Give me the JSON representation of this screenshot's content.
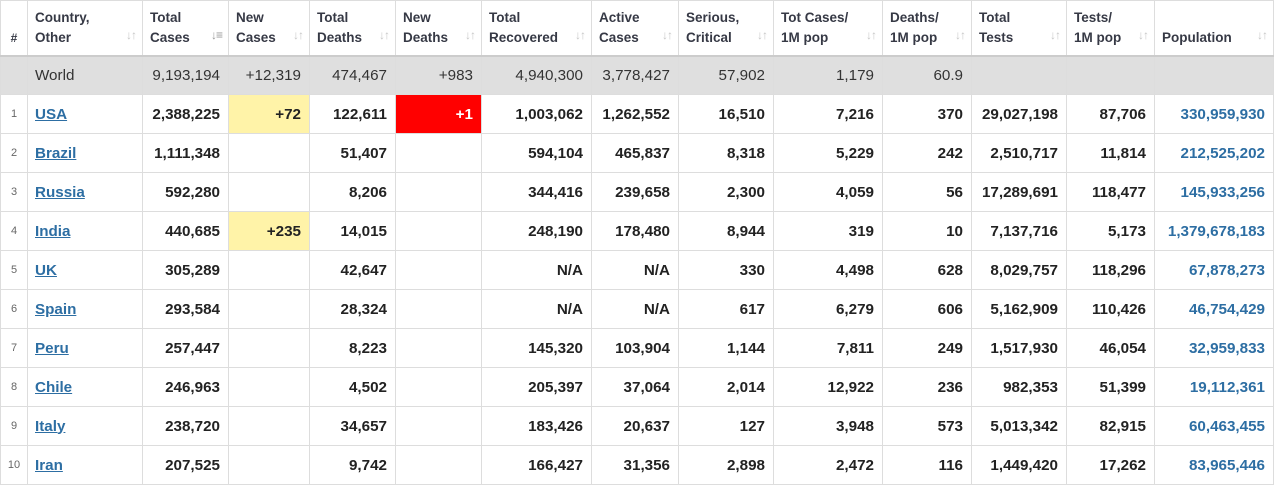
{
  "headers": {
    "hash": "#",
    "country": [
      "Country,",
      "Other"
    ],
    "total_cases": [
      "Total",
      "Cases"
    ],
    "new_cases": [
      "New",
      "Cases"
    ],
    "total_deaths": [
      "Total",
      "Deaths"
    ],
    "new_deaths": [
      "New",
      "Deaths"
    ],
    "total_recovered": [
      "Total",
      "Recovered"
    ],
    "active_cases": [
      "Active",
      "Cases"
    ],
    "serious": [
      "Serious,",
      "Critical"
    ],
    "cases_per_m": [
      "Tot Cases/",
      "1M pop"
    ],
    "deaths_per_m": [
      "Deaths/",
      "1M pop"
    ],
    "total_tests": [
      "Total",
      "Tests"
    ],
    "tests_per_m": [
      "Tests/",
      "1M pop"
    ],
    "population": "Population"
  },
  "sort_icons": {
    "active": "sort-descending-icon",
    "inactive": "sort-both-icon"
  },
  "colors": {
    "new_cases_highlight": "#fff3a8",
    "new_deaths_highlight": "#ff0000",
    "link": "#2d6ea3",
    "world_row": "#dfdfdf"
  },
  "world": {
    "country": "World",
    "total_cases": "9,193,194",
    "new_cases": "+12,319",
    "total_deaths": "474,467",
    "new_deaths": "+983",
    "total_recovered": "4,940,300",
    "active_cases": "3,778,427",
    "serious": "57,902",
    "cases_per_m": "1,179",
    "deaths_per_m": "60.9",
    "total_tests": "",
    "tests_per_m": "",
    "population": ""
  },
  "rows": [
    {
      "num": "1",
      "country": "USA",
      "total_cases": "2,388,225",
      "new_cases": "+72",
      "total_deaths": "122,611",
      "new_deaths": "+1",
      "total_recovered": "1,003,062",
      "active_cases": "1,262,552",
      "serious": "16,510",
      "cases_per_m": "7,216",
      "deaths_per_m": "370",
      "total_tests": "29,027,198",
      "tests_per_m": "87,706",
      "population": "330,959,930"
    },
    {
      "num": "2",
      "country": "Brazil",
      "total_cases": "1,111,348",
      "new_cases": "",
      "total_deaths": "51,407",
      "new_deaths": "",
      "total_recovered": "594,104",
      "active_cases": "465,837",
      "serious": "8,318",
      "cases_per_m": "5,229",
      "deaths_per_m": "242",
      "total_tests": "2,510,717",
      "tests_per_m": "11,814",
      "population": "212,525,202"
    },
    {
      "num": "3",
      "country": "Russia",
      "total_cases": "592,280",
      "new_cases": "",
      "total_deaths": "8,206",
      "new_deaths": "",
      "total_recovered": "344,416",
      "active_cases": "239,658",
      "serious": "2,300",
      "cases_per_m": "4,059",
      "deaths_per_m": "56",
      "total_tests": "17,289,691",
      "tests_per_m": "118,477",
      "population": "145,933,256"
    },
    {
      "num": "4",
      "country": "India",
      "total_cases": "440,685",
      "new_cases": "+235",
      "total_deaths": "14,015",
      "new_deaths": "",
      "total_recovered": "248,190",
      "active_cases": "178,480",
      "serious": "8,944",
      "cases_per_m": "319",
      "deaths_per_m": "10",
      "total_tests": "7,137,716",
      "tests_per_m": "5,173",
      "population": "1,379,678,183"
    },
    {
      "num": "5",
      "country": "UK",
      "total_cases": "305,289",
      "new_cases": "",
      "total_deaths": "42,647",
      "new_deaths": "",
      "total_recovered": "N/A",
      "active_cases": "N/A",
      "serious": "330",
      "cases_per_m": "4,498",
      "deaths_per_m": "628",
      "total_tests": "8,029,757",
      "tests_per_m": "118,296",
      "population": "67,878,273"
    },
    {
      "num": "6",
      "country": "Spain",
      "total_cases": "293,584",
      "new_cases": "",
      "total_deaths": "28,324",
      "new_deaths": "",
      "total_recovered": "N/A",
      "active_cases": "N/A",
      "serious": "617",
      "cases_per_m": "6,279",
      "deaths_per_m": "606",
      "total_tests": "5,162,909",
      "tests_per_m": "110,426",
      "population": "46,754,429"
    },
    {
      "num": "7",
      "country": "Peru",
      "total_cases": "257,447",
      "new_cases": "",
      "total_deaths": "8,223",
      "new_deaths": "",
      "total_recovered": "145,320",
      "active_cases": "103,904",
      "serious": "1,144",
      "cases_per_m": "7,811",
      "deaths_per_m": "249",
      "total_tests": "1,517,930",
      "tests_per_m": "46,054",
      "population": "32,959,833"
    },
    {
      "num": "8",
      "country": "Chile",
      "total_cases": "246,963",
      "new_cases": "",
      "total_deaths": "4,502",
      "new_deaths": "",
      "total_recovered": "205,397",
      "active_cases": "37,064",
      "serious": "2,014",
      "cases_per_m": "12,922",
      "deaths_per_m": "236",
      "total_tests": "982,353",
      "tests_per_m": "51,399",
      "population": "19,112,361"
    },
    {
      "num": "9",
      "country": "Italy",
      "total_cases": "238,720",
      "new_cases": "",
      "total_deaths": "34,657",
      "new_deaths": "",
      "total_recovered": "183,426",
      "active_cases": "20,637",
      "serious": "127",
      "cases_per_m": "3,948",
      "deaths_per_m": "573",
      "total_tests": "5,013,342",
      "tests_per_m": "82,915",
      "population": "60,463,455"
    },
    {
      "num": "10",
      "country": "Iran",
      "total_cases": "207,525",
      "new_cases": "",
      "total_deaths": "9,742",
      "new_deaths": "",
      "total_recovered": "166,427",
      "active_cases": "31,356",
      "serious": "2,898",
      "cases_per_m": "2,472",
      "deaths_per_m": "116",
      "total_tests": "1,449,420",
      "tests_per_m": "17,262",
      "population": "83,965,446"
    }
  ]
}
